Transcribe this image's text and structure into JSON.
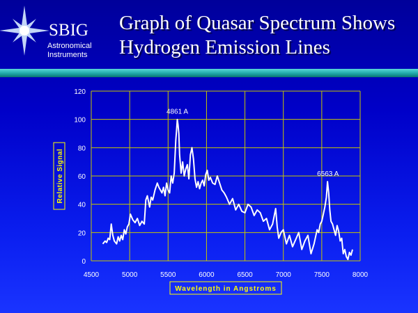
{
  "header": {
    "brand_name": "SBIG",
    "brand_sub": "Astronomical\nInstruments",
    "logo_icon": "star-burst-icon",
    "title": "Graph of Quasar Spectrum Shows Hydrogen Emission Lines"
  },
  "colors": {
    "background": "#0000c8",
    "divider": "#1ea8a8",
    "grid": "#c8c800",
    "axis_label": "#ffff00",
    "line": "#ffffff"
  },
  "chart_data": {
    "type": "line",
    "title": "",
    "xlabel": "Wavelength in Angstroms",
    "ylabel": "Relative Signal",
    "xlim": [
      4500,
      8000
    ],
    "ylim": [
      0,
      120
    ],
    "x_ticks": [
      4500,
      5000,
      5500,
      6000,
      6500,
      7000,
      7500,
      8000
    ],
    "y_ticks": [
      0,
      20,
      40,
      60,
      80,
      100,
      120
    ],
    "grid": true,
    "annotations": [
      {
        "text": "4861 A",
        "x": 5620,
        "y": 100
      },
      {
        "text": "6563 A",
        "x": 7580,
        "y": 56
      }
    ],
    "series": [
      {
        "x": [
          4650,
          4680,
          4700,
          4720,
          4740,
          4760,
          4780,
          4800,
          4830,
          4850,
          4870,
          4890,
          4910,
          4930,
          4950,
          4970,
          4990,
          5010,
          5040,
          5070,
          5100,
          5130,
          5160,
          5190,
          5210,
          5230,
          5260,
          5280,
          5300,
          5330,
          5360,
          5380,
          5400,
          5420,
          5440,
          5460,
          5480,
          5500,
          5520,
          5540,
          5560,
          5580,
          5600,
          5610,
          5620,
          5630,
          5640,
          5650,
          5670,
          5690,
          5710,
          5730,
          5750,
          5770,
          5790,
          5810,
          5830,
          5850,
          5870,
          5890,
          5910,
          5930,
          5950,
          5970,
          5990,
          6010,
          6030,
          6050,
          6080,
          6110,
          6140,
          6170,
          6200,
          6230,
          6260,
          6300,
          6340,
          6380,
          6420,
          6460,
          6500,
          6540,
          6580,
          6620,
          6660,
          6700,
          6740,
          6780,
          6820,
          6860,
          6900,
          6920,
          6940,
          6970,
          7000,
          7040,
          7080,
          7120,
          7160,
          7200,
          7240,
          7280,
          7320,
          7360,
          7400,
          7440,
          7460,
          7480,
          7500,
          7520,
          7540,
          7560,
          7575,
          7590,
          7605,
          7620,
          7640,
          7660,
          7680,
          7700,
          7720,
          7740,
          7760,
          7780,
          7800,
          7820,
          7840,
          7860,
          7880,
          7900
        ],
        "y": [
          12,
          14,
          13,
          16,
          15,
          26,
          18,
          14,
          12,
          17,
          14,
          18,
          15,
          22,
          19,
          24,
          26,
          33,
          29,
          27,
          30,
          25,
          28,
          26,
          43,
          46,
          38,
          45,
          43,
          50,
          55,
          52,
          50,
          48,
          52,
          46,
          55,
          50,
          48,
          60,
          55,
          62,
          85,
          92,
          100,
          96,
          90,
          75,
          62,
          70,
          60,
          65,
          68,
          58,
          75,
          80,
          72,
          58,
          52,
          56,
          51,
          55,
          57,
          53,
          61,
          64,
          57,
          59,
          55,
          54,
          60,
          55,
          50,
          48,
          45,
          40,
          44,
          36,
          40,
          35,
          34,
          40,
          38,
          32,
          36,
          34,
          28,
          30,
          22,
          26,
          37,
          24,
          16,
          20,
          22,
          12,
          18,
          10,
          15,
          20,
          8,
          14,
          18,
          5,
          12,
          22,
          20,
          26,
          28,
          33,
          38,
          45,
          56,
          48,
          36,
          28,
          26,
          22,
          18,
          25,
          21,
          14,
          16,
          5,
          8,
          3,
          1,
          6,
          4,
          8
        ]
      }
    ]
  }
}
